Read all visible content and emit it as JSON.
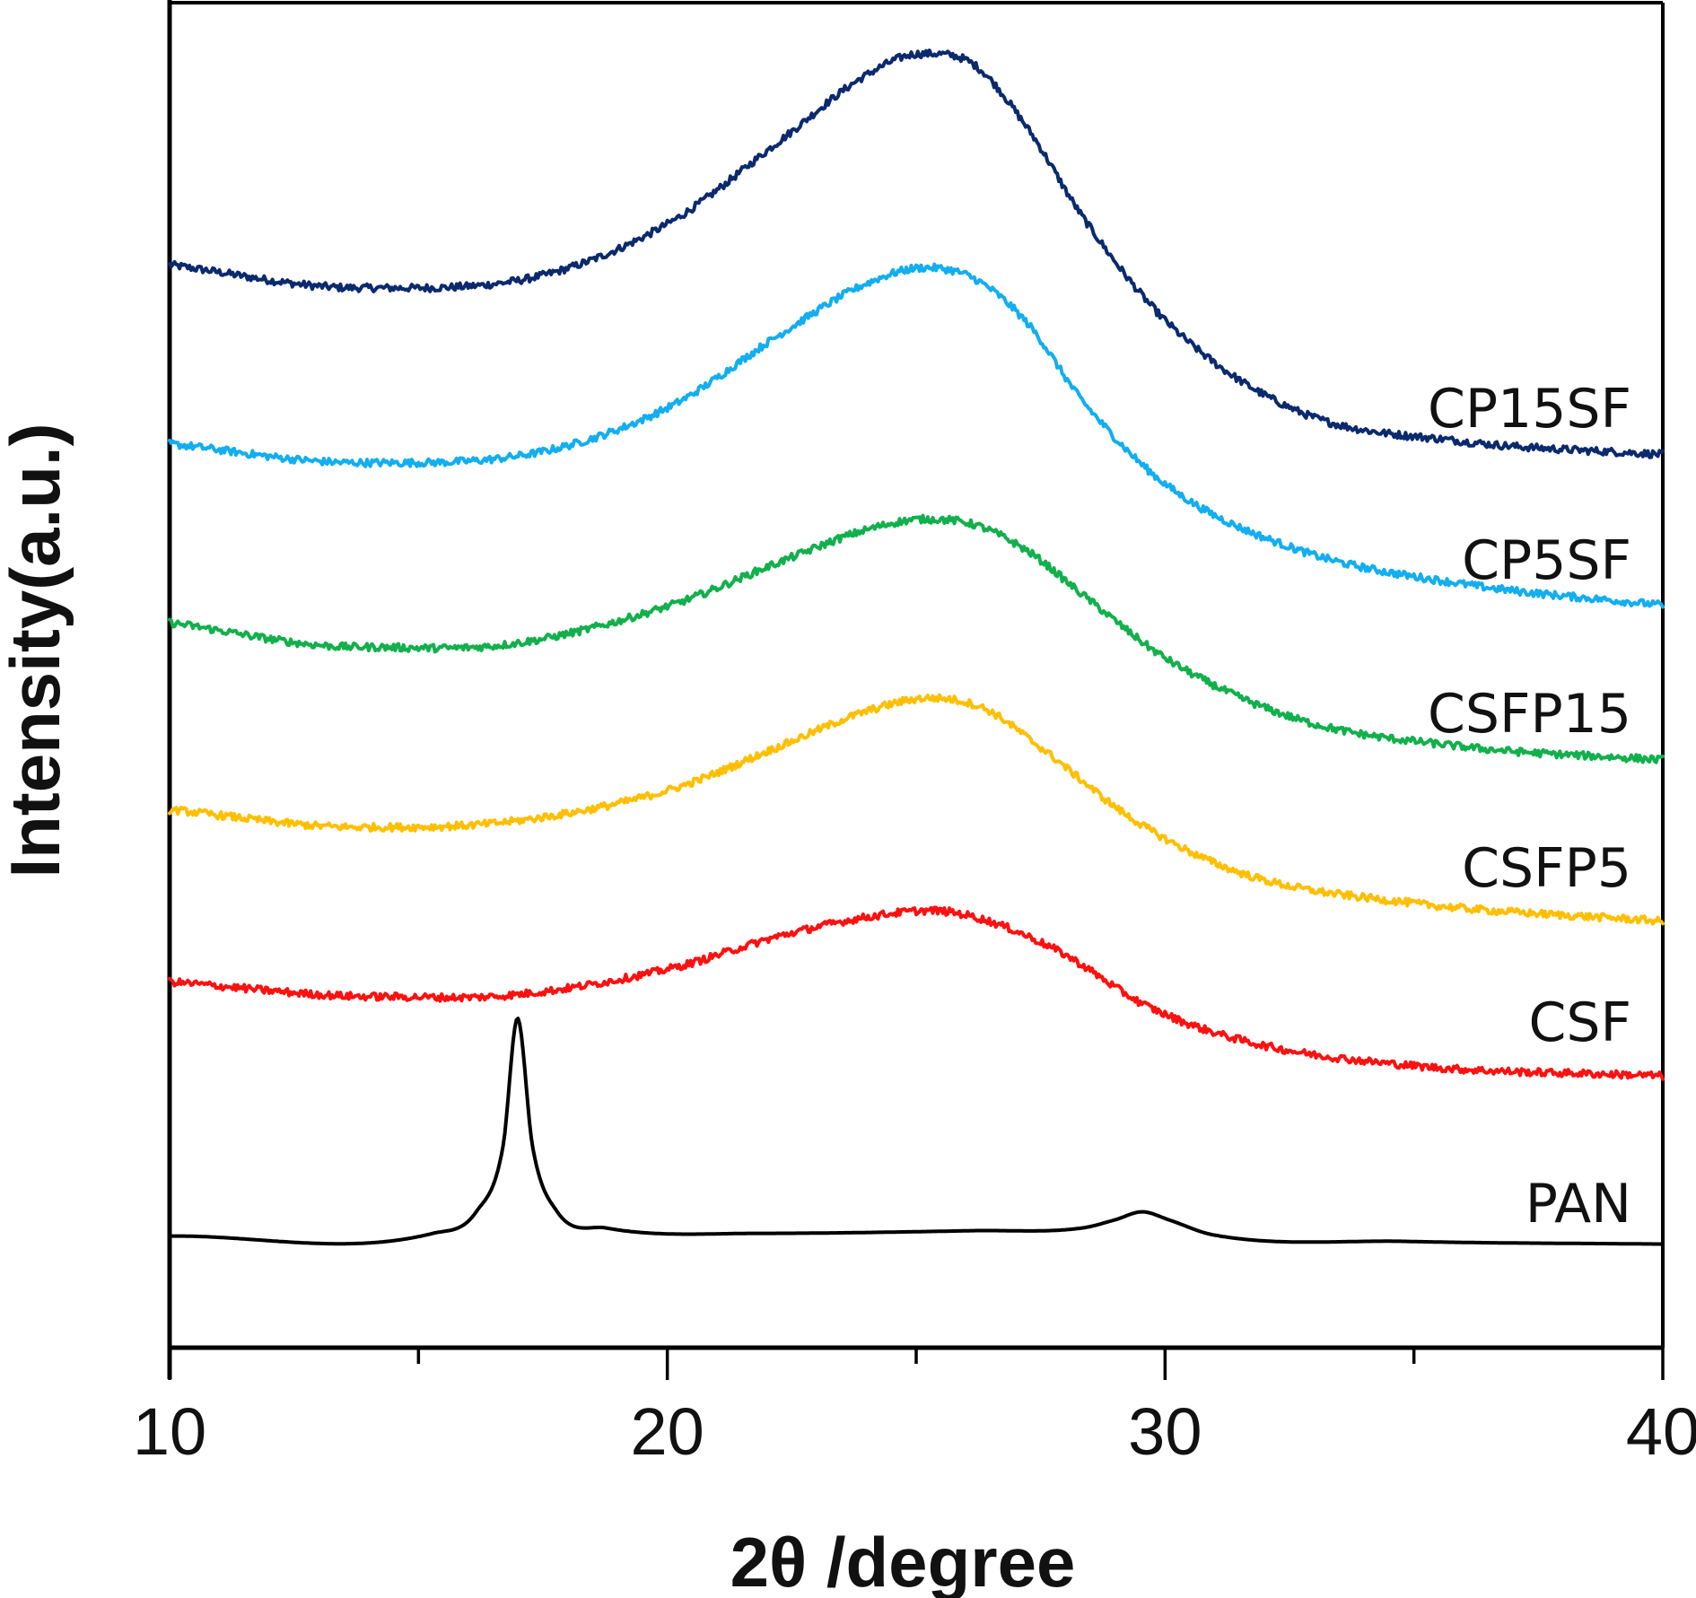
{
  "chart_data": {
    "type": "line",
    "title": "",
    "xlabel": "2θ /degree",
    "ylabel": "Intensity(a.u.)",
    "xlim": [
      10,
      40
    ],
    "ylim": [
      0,
      100
    ],
    "x_ticks": [
      10,
      20,
      30,
      40
    ],
    "x_tick_labels": [
      "10",
      "20",
      "30",
      "40"
    ],
    "x_minor_ticks": [
      15,
      25,
      35
    ],
    "y_ticks": [],
    "grid": false,
    "legend": "inline labels at right end of each curve",
    "series": [
      {
        "name": "CP15SF",
        "color": "#0b2a6e",
        "x": [
          10,
          13.76,
          17.46,
          20.07,
          22.25,
          23.99,
          25.08,
          26.16,
          27.25,
          28.34,
          30.08,
          32.69,
          35.95,
          40
        ],
        "y": [
          80.5,
          78.8,
          79.7,
          83.7,
          89.7,
          94.6,
          96.2,
          95.4,
          90.6,
          84.1,
          76.1,
          69.6,
          67.4,
          66.4
        ]
      },
      {
        "name": "CP5SF",
        "color": "#12aef0",
        "x": [
          10,
          13.76,
          17.46,
          20.07,
          22.25,
          23.99,
          25.18,
          26.16,
          27.25,
          28.34,
          30.08,
          32.69,
          35.95,
          40
        ],
        "y": [
          67.2,
          65.8,
          66.6,
          70.0,
          75.3,
          79.1,
          80.3,
          79.5,
          76.1,
          70.4,
          64.0,
          59.3,
          56.8,
          55.2
        ]
      },
      {
        "name": "CSFP15",
        "color": "#12b04c",
        "x": [
          10,
          13.76,
          16.81,
          20.07,
          22.25,
          23.99,
          25.18,
          26.16,
          27.25,
          28.34,
          30.08,
          32.69,
          35.95,
          40
        ],
        "y": [
          53.9,
          52.1,
          52.3,
          55.2,
          58.4,
          60.8,
          61.6,
          61.2,
          59.2,
          56.0,
          51.1,
          46.7,
          44.7,
          43.7
        ]
      },
      {
        "name": "CSFP5",
        "color": "#ffbf00",
        "x": [
          10,
          13.76,
          16.81,
          20.07,
          22.25,
          23.99,
          25.29,
          26.38,
          27.47,
          29.43,
          31.6,
          34.87,
          40
        ],
        "y": [
          40.0,
          38.7,
          39.1,
          41.5,
          44.7,
          47.3,
          48.3,
          47.5,
          44.7,
          39.1,
          35.2,
          33.1,
          31.7
        ]
      },
      {
        "name": "CSF",
        "color": "#ff1010",
        "x": [
          10,
          14.2,
          16.81,
          20.07,
          22.25,
          23.99,
          25.29,
          26.38,
          27.9,
          29.64,
          31.6,
          34.87,
          40
        ],
        "y": [
          27.2,
          26.1,
          26.2,
          28.2,
          30.6,
          32.0,
          32.5,
          31.8,
          29.4,
          25.4,
          22.8,
          21.0,
          20.2
        ]
      },
      {
        "name": "PAN",
        "color": "#000000",
        "x": [
          10,
          15.29,
          16.16,
          16.7,
          16.99,
          17.29,
          17.79,
          18.77,
          21.81,
          26.16,
          28.34,
          28.99,
          29.54,
          30.08,
          30.95,
          34.87,
          40
        ],
        "y": [
          8.3,
          8.5,
          10.1,
          15.0,
          24.5,
          15.0,
          10.1,
          8.9,
          8.5,
          8.7,
          8.9,
          9.5,
          10.1,
          9.5,
          8.4,
          7.9,
          7.7
        ]
      }
    ]
  }
}
